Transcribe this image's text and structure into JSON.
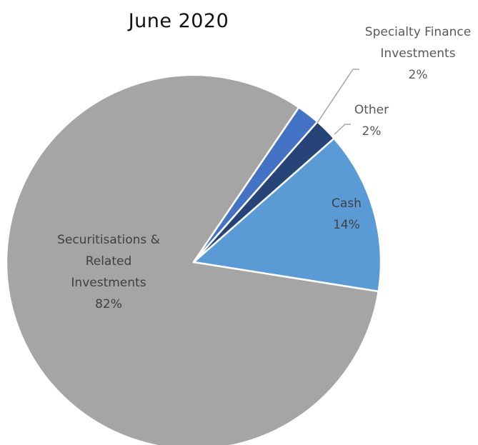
{
  "chart_data": {
    "type": "pie",
    "title": "June 2020",
    "slices": [
      {
        "label_lines": [
          "Cash",
          "14%"
        ],
        "value": 14,
        "color": "#5b9bd5",
        "label_color": "#404040"
      },
      {
        "label_lines": [
          "Securitisations &",
          "Related",
          "Investments",
          "82%"
        ],
        "value": 82,
        "color": "#a5a5a5",
        "label_color": "#404040"
      },
      {
        "label_lines": [
          "Specialty Finance",
          "Investments",
          "2%"
        ],
        "value": 2,
        "color": "#4472c4",
        "label_color": "#595959"
      },
      {
        "label_lines": [
          "Other",
          "2%"
        ],
        "value": 2,
        "color": "#264478",
        "label_color": "#595959"
      }
    ],
    "legend": "none"
  }
}
